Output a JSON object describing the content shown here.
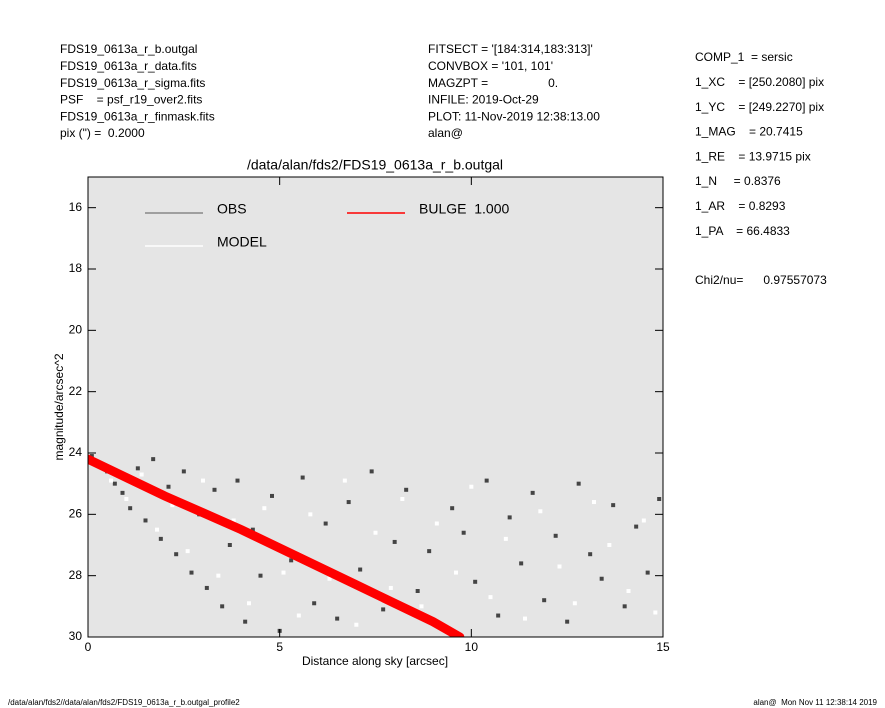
{
  "header": {
    "left": [
      "FDS19_0613a_r_b.outgal",
      "FDS19_0613a_r_data.fits",
      "FDS19_0613a_r_sigma.fits",
      "PSF    = psf_r19_over2.fits",
      "FDS19_0613a_r_finmask.fits",
      "pix (\") =  0.2000"
    ],
    "middle": [
      "FITSECT = '[184:314,183:313]'",
      "CONVBOX = '101, 101'",
      "MAGZPT =                  0.",
      "INFILE: 2019-Oct-29",
      "PLOT: 11-Nov-2019 12:38:13.00",
      "alan@"
    ],
    "right": [
      "COMP_1  = sersic",
      "1_XC    = [250.2080] pix",
      "1_YC    = [249.2270] pix",
      "1_MAG    = 20.7415",
      "1_RE    = 13.9715 pix",
      "1_N     = 0.8376",
      "1_AR    = 0.8293",
      "1_PA    = 66.4833"
    ],
    "chi2": "Chi2/nu=      0.97557073"
  },
  "footer": {
    "left": "/data/alan/fds2//data/alan/fds2/FDS19_0613a_r_b.outgal_profile2",
    "right": "alan@  Mon Nov 11 12:38:14 2019"
  },
  "chart_data": {
    "type": "scatter",
    "title": "/data/alan/fds2/FDS19_0613a_r_b.outgal",
    "x_label": "Distance along sky [arcsec]",
    "y_label": "magnitude/arcsec^2",
    "xlim": [
      0,
      15
    ],
    "xticks": [
      0,
      5,
      10,
      15
    ],
    "ylim": [
      30,
      15
    ],
    "yticks": [
      16,
      18,
      20,
      22,
      24,
      26,
      28,
      30
    ],
    "background": "#e5e5e5",
    "series": [
      {
        "name": "OBS",
        "color": "#444444",
        "type": "scatter",
        "x": [
          0.1,
          0.3,
          0.5,
          0.7,
          0.9,
          1.1,
          1.3,
          1.5,
          1.7,
          1.9,
          2.1,
          2.3,
          2.5,
          2.7,
          2.9,
          3.1,
          3.3,
          3.5,
          3.7,
          3.9,
          4.1,
          4.3,
          4.5,
          4.8,
          5.0,
          5.3,
          5.6,
          5.9,
          6.2,
          6.5,
          6.8,
          7.1,
          7.4,
          7.7,
          8.0,
          8.3,
          8.6,
          8.9,
          9.2,
          9.5,
          9.8,
          10.1,
          10.4,
          10.7,
          11.0,
          11.3,
          11.6,
          11.9,
          12.2,
          12.5,
          12.8,
          13.1,
          13.4,
          13.7,
          14.0,
          14.3,
          14.6,
          14.9
        ],
        "values": [
          24.1,
          24.4,
          24.6,
          25.0,
          25.3,
          25.8,
          24.5,
          26.2,
          24.2,
          26.8,
          25.1,
          27.3,
          24.6,
          27.9,
          26.0,
          28.4,
          25.2,
          29.0,
          27.0,
          24.9,
          29.5,
          26.5,
          28.0,
          25.4,
          29.8,
          27.5,
          24.8,
          28.9,
          26.3,
          29.4,
          25.6,
          27.8,
          24.6,
          29.1,
          26.9,
          25.2,
          28.5,
          27.2,
          29.7,
          25.8,
          26.6,
          28.2,
          24.9,
          29.3,
          26.1,
          27.6,
          25.3,
          28.8,
          26.7,
          29.5,
          25.0,
          27.3,
          28.1,
          25.7,
          29.0,
          26.4,
          27.9,
          25.5
        ]
      },
      {
        "name": "MODEL",
        "color": "#ffffff",
        "type": "scatter",
        "x": [
          0.2,
          0.6,
          1.0,
          1.4,
          1.8,
          2.2,
          2.6,
          3.0,
          3.4,
          3.8,
          4.2,
          4.6,
          5.1,
          5.5,
          5.8,
          6.3,
          6.7,
          7.0,
          7.5,
          7.9,
          8.2,
          8.7,
          9.1,
          9.6,
          10.0,
          10.5,
          10.9,
          11.4,
          11.8,
          12.3,
          12.7,
          13.2,
          13.6,
          14.1,
          14.5,
          14.8
        ],
        "values": [
          24.3,
          24.9,
          25.5,
          24.7,
          26.5,
          25.7,
          27.2,
          24.9,
          28.0,
          26.2,
          28.9,
          25.8,
          27.9,
          29.3,
          26.0,
          28.1,
          24.9,
          29.6,
          26.6,
          28.4,
          25.5,
          29.0,
          26.3,
          27.9,
          25.1,
          28.7,
          26.8,
          29.4,
          25.9,
          27.7,
          28.9,
          25.6,
          27.0,
          28.5,
          26.2,
          29.2
        ]
      },
      {
        "name": "BULGE  1.000",
        "color": "#ff0000",
        "type": "line",
        "x": [
          0,
          1,
          2,
          3,
          4,
          5,
          6,
          7,
          8,
          9,
          9.7
        ],
        "values": [
          24.2,
          24.8,
          25.4,
          25.95,
          26.5,
          27.1,
          27.7,
          28.3,
          28.9,
          29.5,
          30.0
        ]
      }
    ]
  }
}
